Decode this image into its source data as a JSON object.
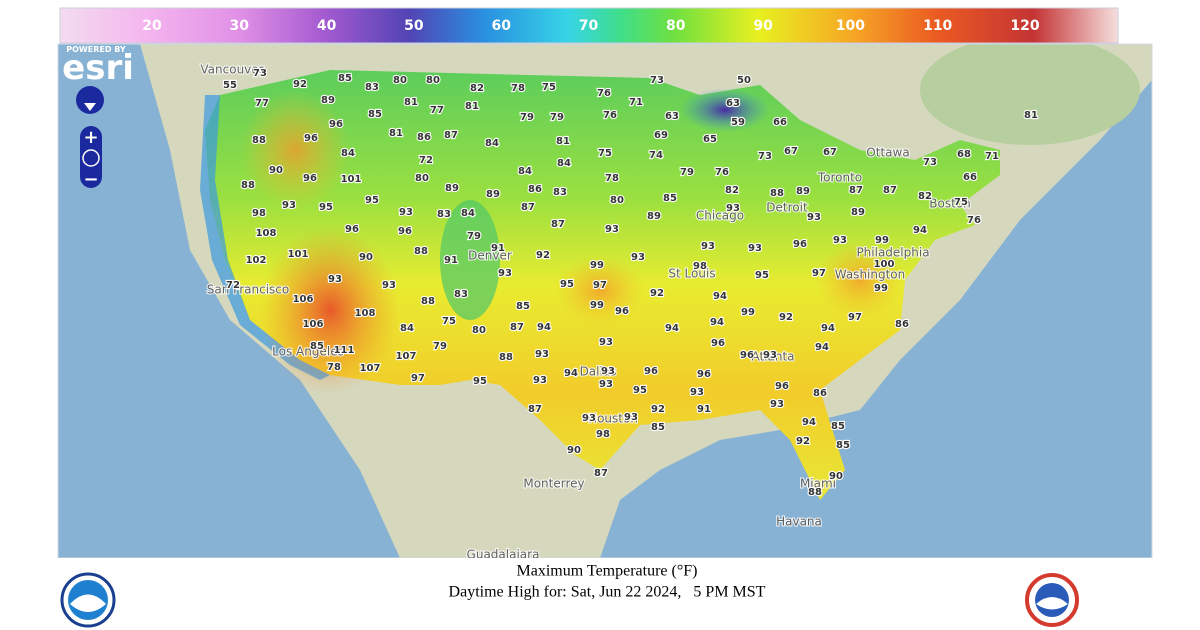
{
  "colorbar": {
    "ticks": [
      20,
      30,
      40,
      50,
      60,
      70,
      80,
      90,
      100,
      110,
      120
    ]
  },
  "logo": {
    "powered_by": "POWERED BY",
    "brand": "esri"
  },
  "cities": [
    "Vancouver",
    "Ottawa",
    "Toronto",
    "Chicago",
    "Detroit",
    "Boston",
    "Philadelphia",
    "Washington",
    "St Louis",
    "Denver",
    "San Francisco",
    "Los Angeles",
    "Dallas",
    "Houston",
    "Atlanta",
    "Miami",
    "Monterrey",
    "Havana",
    "Guadalajara"
  ],
  "temperatures": [
    73,
    55,
    77,
    92,
    85,
    83,
    80,
    80,
    82,
    78,
    75,
    76,
    73,
    50,
    71,
    89,
    81,
    77,
    81,
    79,
    79,
    76,
    63,
    63,
    59,
    66,
    81,
    85,
    96,
    88,
    96,
    81,
    86,
    87,
    84,
    81,
    69,
    65,
    75,
    74,
    73,
    67,
    67,
    73,
    68,
    71,
    84,
    72,
    84,
    79,
    76,
    66,
    90,
    96,
    101,
    80,
    84,
    78,
    82,
    88,
    89,
    87,
    87,
    88,
    89,
    89,
    86,
    83,
    85,
    80,
    82,
    75,
    93,
    95,
    95,
    93,
    83,
    84,
    87,
    93,
    93,
    89,
    76,
    98,
    87,
    89,
    93,
    108,
    96,
    96,
    79,
    91,
    93,
    93,
    96,
    93,
    99,
    94,
    88,
    91,
    92,
    93,
    102,
    101,
    90,
    93,
    99,
    98,
    100,
    97,
    95,
    93,
    93,
    95,
    97,
    72,
    83,
    92,
    99,
    94,
    106,
    88,
    85,
    99,
    96,
    99,
    92,
    97,
    86,
    108,
    75,
    80,
    87,
    94,
    94,
    94,
    94,
    106,
    84,
    79,
    93,
    96,
    94,
    85,
    111,
    107,
    88,
    93,
    96,
    93,
    78,
    107,
    97,
    94,
    93,
    96,
    96,
    95,
    93,
    93,
    95,
    93,
    96,
    86,
    87,
    92,
    91,
    93,
    93,
    93,
    85,
    85,
    94,
    92,
    85,
    90,
    98,
    90,
    88,
    87
  ],
  "footer": {
    "title": "Maximum Temperature (°F)",
    "subtitle": "Daytime High for: Sat, Jun 22 2024,   5 PM MST"
  }
}
